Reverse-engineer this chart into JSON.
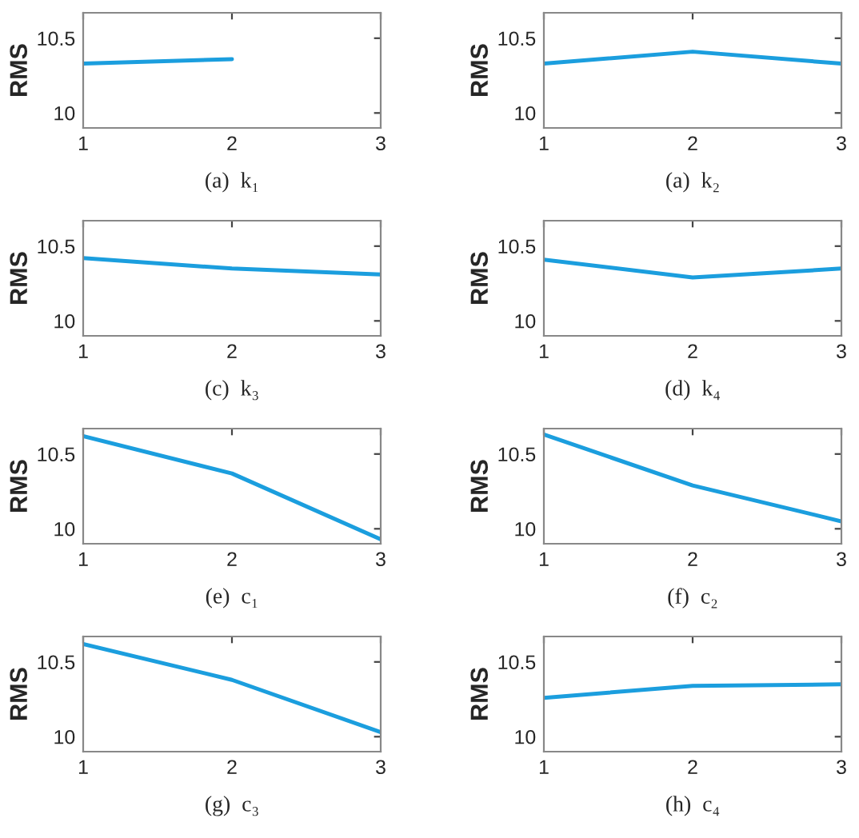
{
  "chart_data": [
    {
      "type": "line",
      "xlabel": "(a)  k₁",
      "ylabel": "RMS",
      "x": [
        1,
        2
      ],
      "series": [
        {
          "color": "#1b9ede",
          "values": [
            10.33,
            10.36
          ]
        }
      ],
      "xlim": [
        1,
        3
      ],
      "ylim": [
        9.9,
        10.67
      ],
      "xticks": [
        1,
        2,
        3
      ],
      "yticks": [
        10,
        10.5
      ],
      "grid": false,
      "legend": false
    },
    {
      "type": "line",
      "xlabel": "(a)  k₂",
      "ylabel": "RMS",
      "x": [
        1,
        2,
        3
      ],
      "series": [
        {
          "color": "#1b9ede",
          "values": [
            10.33,
            10.41,
            10.33
          ]
        }
      ],
      "xlim": [
        1,
        3
      ],
      "ylim": [
        9.9,
        10.67
      ],
      "xticks": [
        1,
        2,
        3
      ],
      "yticks": [
        10,
        10.5
      ],
      "grid": false,
      "legend": false
    },
    {
      "type": "line",
      "xlabel": "(c)  k₃",
      "ylabel": "RMS",
      "x": [
        1,
        2,
        3
      ],
      "series": [
        {
          "color": "#1b9ede",
          "values": [
            10.42,
            10.35,
            10.31
          ]
        }
      ],
      "xlim": [
        1,
        3
      ],
      "ylim": [
        9.9,
        10.67
      ],
      "xticks": [
        1,
        2,
        3
      ],
      "yticks": [
        10,
        10.5
      ],
      "grid": false,
      "legend": false
    },
    {
      "type": "line",
      "xlabel": "(d)  k₄",
      "ylabel": "RMS",
      "x": [
        1,
        2,
        3
      ],
      "series": [
        {
          "color": "#1b9ede",
          "values": [
            10.41,
            10.29,
            10.35
          ]
        }
      ],
      "xlim": [
        1,
        3
      ],
      "ylim": [
        9.9,
        10.67
      ],
      "xticks": [
        1,
        2,
        3
      ],
      "yticks": [
        10,
        10.5
      ],
      "grid": false,
      "legend": false
    },
    {
      "type": "line",
      "xlabel": "(e)  c₁",
      "ylabel": "RMS",
      "x": [
        1,
        2,
        3
      ],
      "series": [
        {
          "color": "#1b9ede",
          "values": [
            10.62,
            10.37,
            9.93
          ]
        }
      ],
      "xlim": [
        1,
        3
      ],
      "ylim": [
        9.9,
        10.67
      ],
      "xticks": [
        1,
        2,
        3
      ],
      "yticks": [
        10,
        10.5
      ],
      "grid": false,
      "legend": false
    },
    {
      "type": "line",
      "xlabel": "(f)  c₂",
      "ylabel": "RMS",
      "x": [
        1,
        2,
        3
      ],
      "series": [
        {
          "color": "#1b9ede",
          "values": [
            10.63,
            10.29,
            10.05
          ]
        }
      ],
      "xlim": [
        1,
        3
      ],
      "ylim": [
        9.9,
        10.67
      ],
      "xticks": [
        1,
        2,
        3
      ],
      "yticks": [
        10,
        10.5
      ],
      "grid": false,
      "legend": false
    },
    {
      "type": "line",
      "xlabel": "(g)  c₃",
      "ylabel": "RMS",
      "x": [
        1,
        2,
        3
      ],
      "series": [
        {
          "color": "#1b9ede",
          "values": [
            10.62,
            10.38,
            10.03
          ]
        }
      ],
      "xlim": [
        1,
        3
      ],
      "ylim": [
        9.9,
        10.67
      ],
      "xticks": [
        1,
        2,
        3
      ],
      "yticks": [
        10,
        10.5
      ],
      "grid": false,
      "legend": false
    },
    {
      "type": "line",
      "xlabel": "(h)  c₄",
      "ylabel": "RMS",
      "x": [
        1,
        2,
        3
      ],
      "series": [
        {
          "color": "#1b9ede",
          "values": [
            10.26,
            10.34,
            10.35
          ]
        }
      ],
      "xlim": [
        1,
        3
      ],
      "ylim": [
        9.9,
        10.67
      ],
      "xticks": [
        1,
        2,
        3
      ],
      "yticks": [
        10,
        10.5
      ],
      "grid": false,
      "legend": false
    }
  ]
}
